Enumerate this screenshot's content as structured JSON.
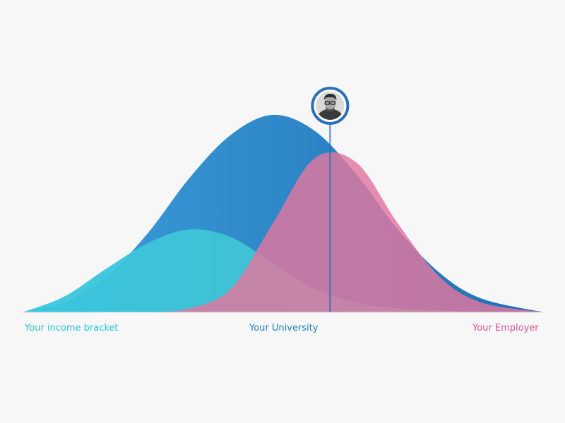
{
  "chart_data": {
    "type": "area",
    "x_categories": [
      "Your income bracket",
      "Your University",
      "Your Employer"
    ],
    "series": [
      {
        "color": "#2a85c9",
        "x": [
          0,
          8,
          16,
          24,
          32,
          40,
          48,
          56,
          64,
          72,
          80,
          88,
          100
        ],
        "y": [
          0,
          0.05,
          0.18,
          0.4,
          0.68,
          0.9,
          1.0,
          0.92,
          0.7,
          0.42,
          0.2,
          0.07,
          0
        ]
      },
      {
        "color": "#3fc6dc",
        "x": [
          0,
          8,
          16,
          24,
          32,
          40,
          48,
          56,
          64,
          72,
          80,
          88,
          100
        ],
        "y": [
          0,
          0.08,
          0.22,
          0.35,
          0.42,
          0.38,
          0.25,
          0.12,
          0.05,
          0.02,
          0.01,
          0,
          0
        ]
      },
      {
        "color": "#e2769f",
        "x": [
          0,
          8,
          16,
          24,
          32,
          40,
          48,
          56,
          64,
          72,
          80,
          88,
          100
        ],
        "y": [
          0,
          0,
          0,
          0,
          0.02,
          0.12,
          0.45,
          0.78,
          0.76,
          0.45,
          0.18,
          0.05,
          0
        ]
      }
    ],
    "marker": {
      "x": 59,
      "icon": "person-avatar"
    },
    "grid": false,
    "legend": "none"
  },
  "labels": {
    "left": "Your income bracket",
    "center": "Your University",
    "right": "Your Employer"
  }
}
